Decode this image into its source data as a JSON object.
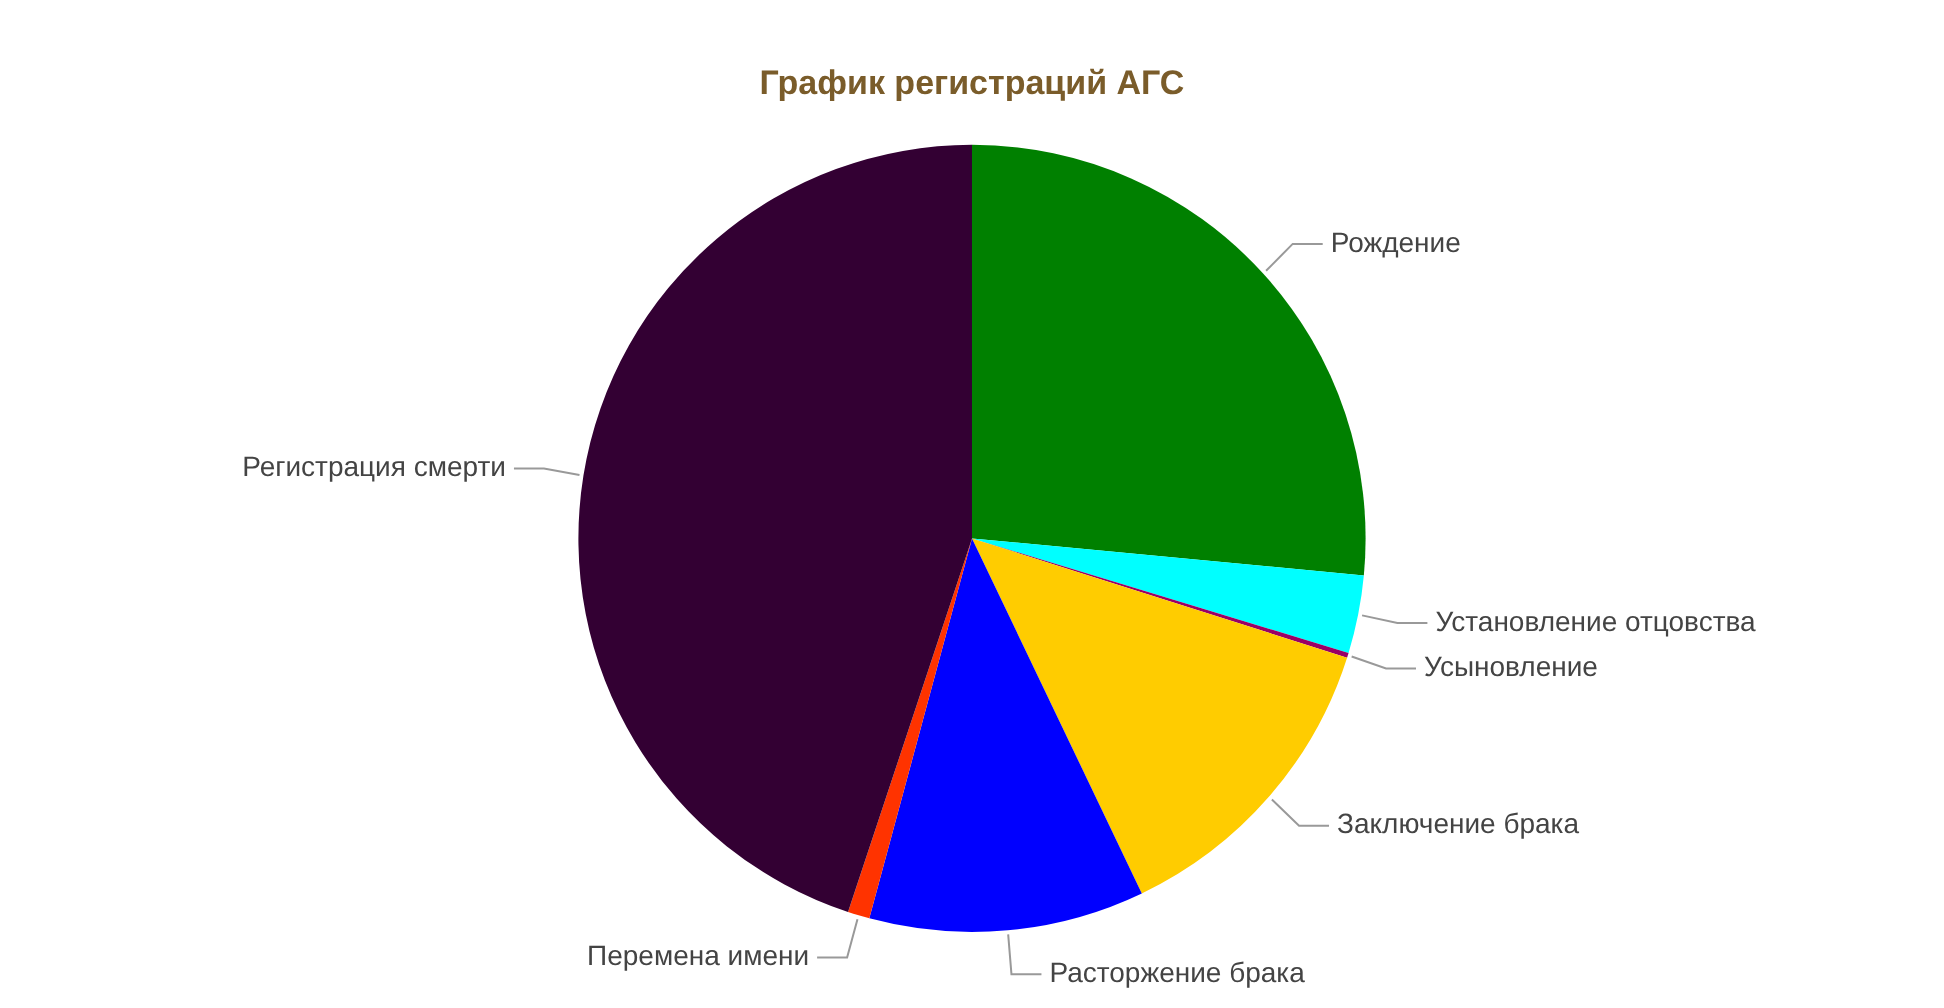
{
  "chart_data": {
    "type": "pie",
    "title": "График регистраций АГС",
    "categories": [
      "Рождение",
      "Установление отцовства",
      "Усыновление",
      "Заключение брака",
      "Расторжение брака",
      "Перемена имени",
      "Регистрация смерти"
    ],
    "values": [
      26.5,
      3.2,
      0.2,
      13,
      11.3,
      0.9,
      44.9
    ],
    "colors": [
      "#008000",
      "#00ffff",
      "#990066",
      "#ffcc00",
      "#0000ff",
      "#ff3300",
      "#330033"
    ],
    "legend": false
  }
}
